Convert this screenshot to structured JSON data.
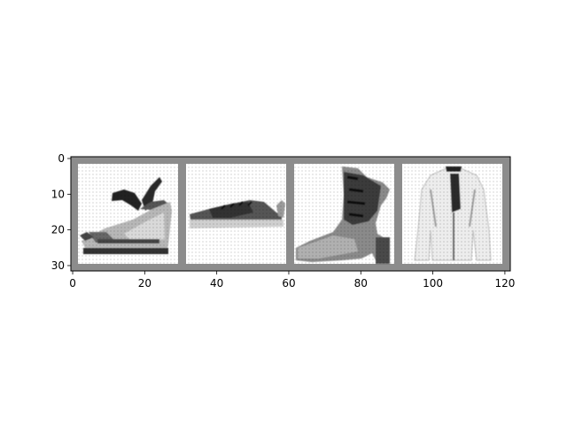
{
  "figure": {
    "background": "#ffffff"
  },
  "image_grid": {
    "grid_color": "#8c8c8c",
    "tiles": [
      {
        "name": "sandal-image",
        "depicts": "sandal"
      },
      {
        "name": "sneaker-image",
        "depicts": "sneaker"
      },
      {
        "name": "ankle-boot-image",
        "depicts": "ankle-boot"
      },
      {
        "name": "jacket-image",
        "depicts": "jacket"
      }
    ]
  },
  "axes": {
    "x_ticks": [
      "0",
      "20",
      "40",
      "60",
      "80",
      "100",
      "120"
    ],
    "y_ticks": [
      "0",
      "10",
      "20",
      "30"
    ],
    "x_tick_values": [
      0,
      20,
      40,
      60,
      80,
      100,
      120
    ],
    "y_tick_values": [
      0,
      10,
      20,
      30
    ],
    "x_range": [
      -0.5,
      121.5
    ],
    "y_range": [
      31.5,
      -0.5
    ]
  }
}
